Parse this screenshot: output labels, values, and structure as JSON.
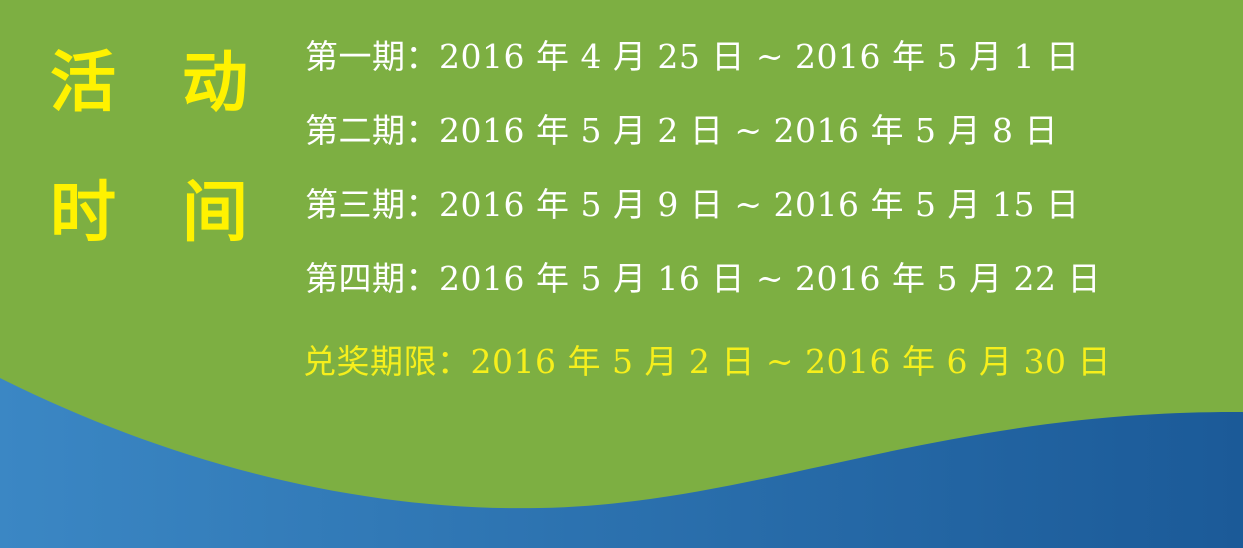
{
  "title": {
    "chars": [
      "活",
      "动",
      "时",
      "间"
    ]
  },
  "periods": [
    "第一期：2016 年 4 月 25 日 ~ 2016 年 5 月 1 日",
    "第二期：2016 年 5 月 2 日 ~ 2016 年 5 月 8 日",
    "第三期：2016 年 5 月 9 日 ~ 2016 年 5 月 15 日",
    "第四期：2016 年 5 月 16 日 ~ 2016 年 5 月 22 日"
  ],
  "redeem": "兑奖期限：2016 年 5 月 2 日 ~ 2016 年 6 月 30 日",
  "colors": {
    "background": "#7daf42",
    "title": "#fff200",
    "period_text": "#ffffff",
    "redeem_text": "#f6ef1c",
    "wave_light": "#3b87c4",
    "wave_dark": "#1b5a98"
  }
}
